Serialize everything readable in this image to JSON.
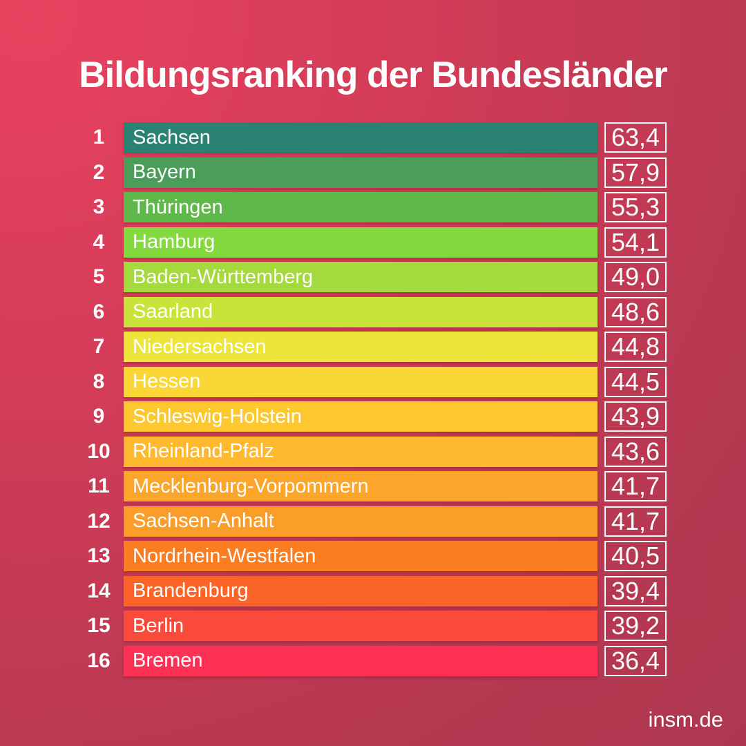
{
  "page": {
    "title": "Bildungsranking der Bundesländer",
    "source_label": "insm.de"
  },
  "colors": {
    "background_gradient_start": "#E8425F",
    "background_gradient_mid": "#D23C57",
    "background_gradient_end": "#AE3750",
    "text": "#FFFFFF",
    "value_box_border": "#FFFFFF"
  },
  "chart_data": {
    "type": "bar",
    "title": "Bildungsranking der Bundesländer",
    "legend": "none",
    "grid": "off",
    "orientation": "horizontal",
    "bar_style": "uniform-length ranked list, color encodes rank from teal/green (best) to red (worst)",
    "value_format": "decimal-comma",
    "categories": [
      "Sachsen",
      "Bayern",
      "Thüringen",
      "Hamburg",
      "Baden-Württemberg",
      "Saarland",
      "Niedersachsen",
      "Hessen",
      "Schleswig-Holstein",
      "Rheinland-Pfalz",
      "Mecklenburg-Vorpommern",
      "Sachsen-Anhalt",
      "Nordrhein-Westfalen",
      "Brandenburg",
      "Berlin",
      "Bremen"
    ],
    "values": [
      63.4,
      57.9,
      55.3,
      54.1,
      49.0,
      48.6,
      44.8,
      44.5,
      43.9,
      43.6,
      41.7,
      41.7,
      40.5,
      39.4,
      39.2,
      36.4
    ],
    "rows": [
      {
        "rank": "1",
        "label": "Sachsen",
        "value": 63.4,
        "value_label": "63,4",
        "color": "#2A8274"
      },
      {
        "rank": "2",
        "label": "Bayern",
        "value": 57.9,
        "value_label": "57,9",
        "color": "#4A9E5A"
      },
      {
        "rank": "3",
        "label": "Thüringen",
        "value": 55.3,
        "value_label": "55,3",
        "color": "#5FB94A"
      },
      {
        "rank": "4",
        "label": "Hamburg",
        "value": 54.1,
        "value_label": "54,1",
        "color": "#84D93F"
      },
      {
        "rank": "5",
        "label": "Baden-Württemberg",
        "value": 49.0,
        "value_label": "49,0",
        "color": "#A4DA3E"
      },
      {
        "rank": "6",
        "label": "Saarland",
        "value": 48.6,
        "value_label": "48,6",
        "color": "#C9E33B"
      },
      {
        "rank": "7",
        "label": "Niedersachsen",
        "value": 44.8,
        "value_label": "44,8",
        "color": "#EEE53A"
      },
      {
        "rank": "8",
        "label": "Hessen",
        "value": 44.5,
        "value_label": "44,5",
        "color": "#FAD735"
      },
      {
        "rank": "9",
        "label": "Schleswig-Holstein",
        "value": 43.9,
        "value_label": "43,9",
        "color": "#FDC72F"
      },
      {
        "rank": "10",
        "label": "Rheinland-Pfalz",
        "value": 43.6,
        "value_label": "43,6",
        "color": "#FEB92E"
      },
      {
        "rank": "11",
        "label": "Mecklenburg-Vorpommern",
        "value": 41.7,
        "value_label": "41,7",
        "color": "#FCA52B"
      },
      {
        "rank": "12",
        "label": "Sachsen-Anhalt",
        "value": 41.7,
        "value_label": "41,7",
        "color": "#FB9E29"
      },
      {
        "rank": "13",
        "label": "Nordrhein-Westfalen",
        "value": 40.5,
        "value_label": "40,5",
        "color": "#FB7D22"
      },
      {
        "rank": "14",
        "label": "Brandenburg",
        "value": 39.4,
        "value_label": "39,4",
        "color": "#FA6428"
      },
      {
        "rank": "15",
        "label": "Berlin",
        "value": 39.2,
        "value_label": "39,2",
        "color": "#FA4A3A"
      },
      {
        "rank": "16",
        "label": "Bremen",
        "value": 36.4,
        "value_label": "36,4",
        "color": "#FC3153"
      }
    ]
  }
}
